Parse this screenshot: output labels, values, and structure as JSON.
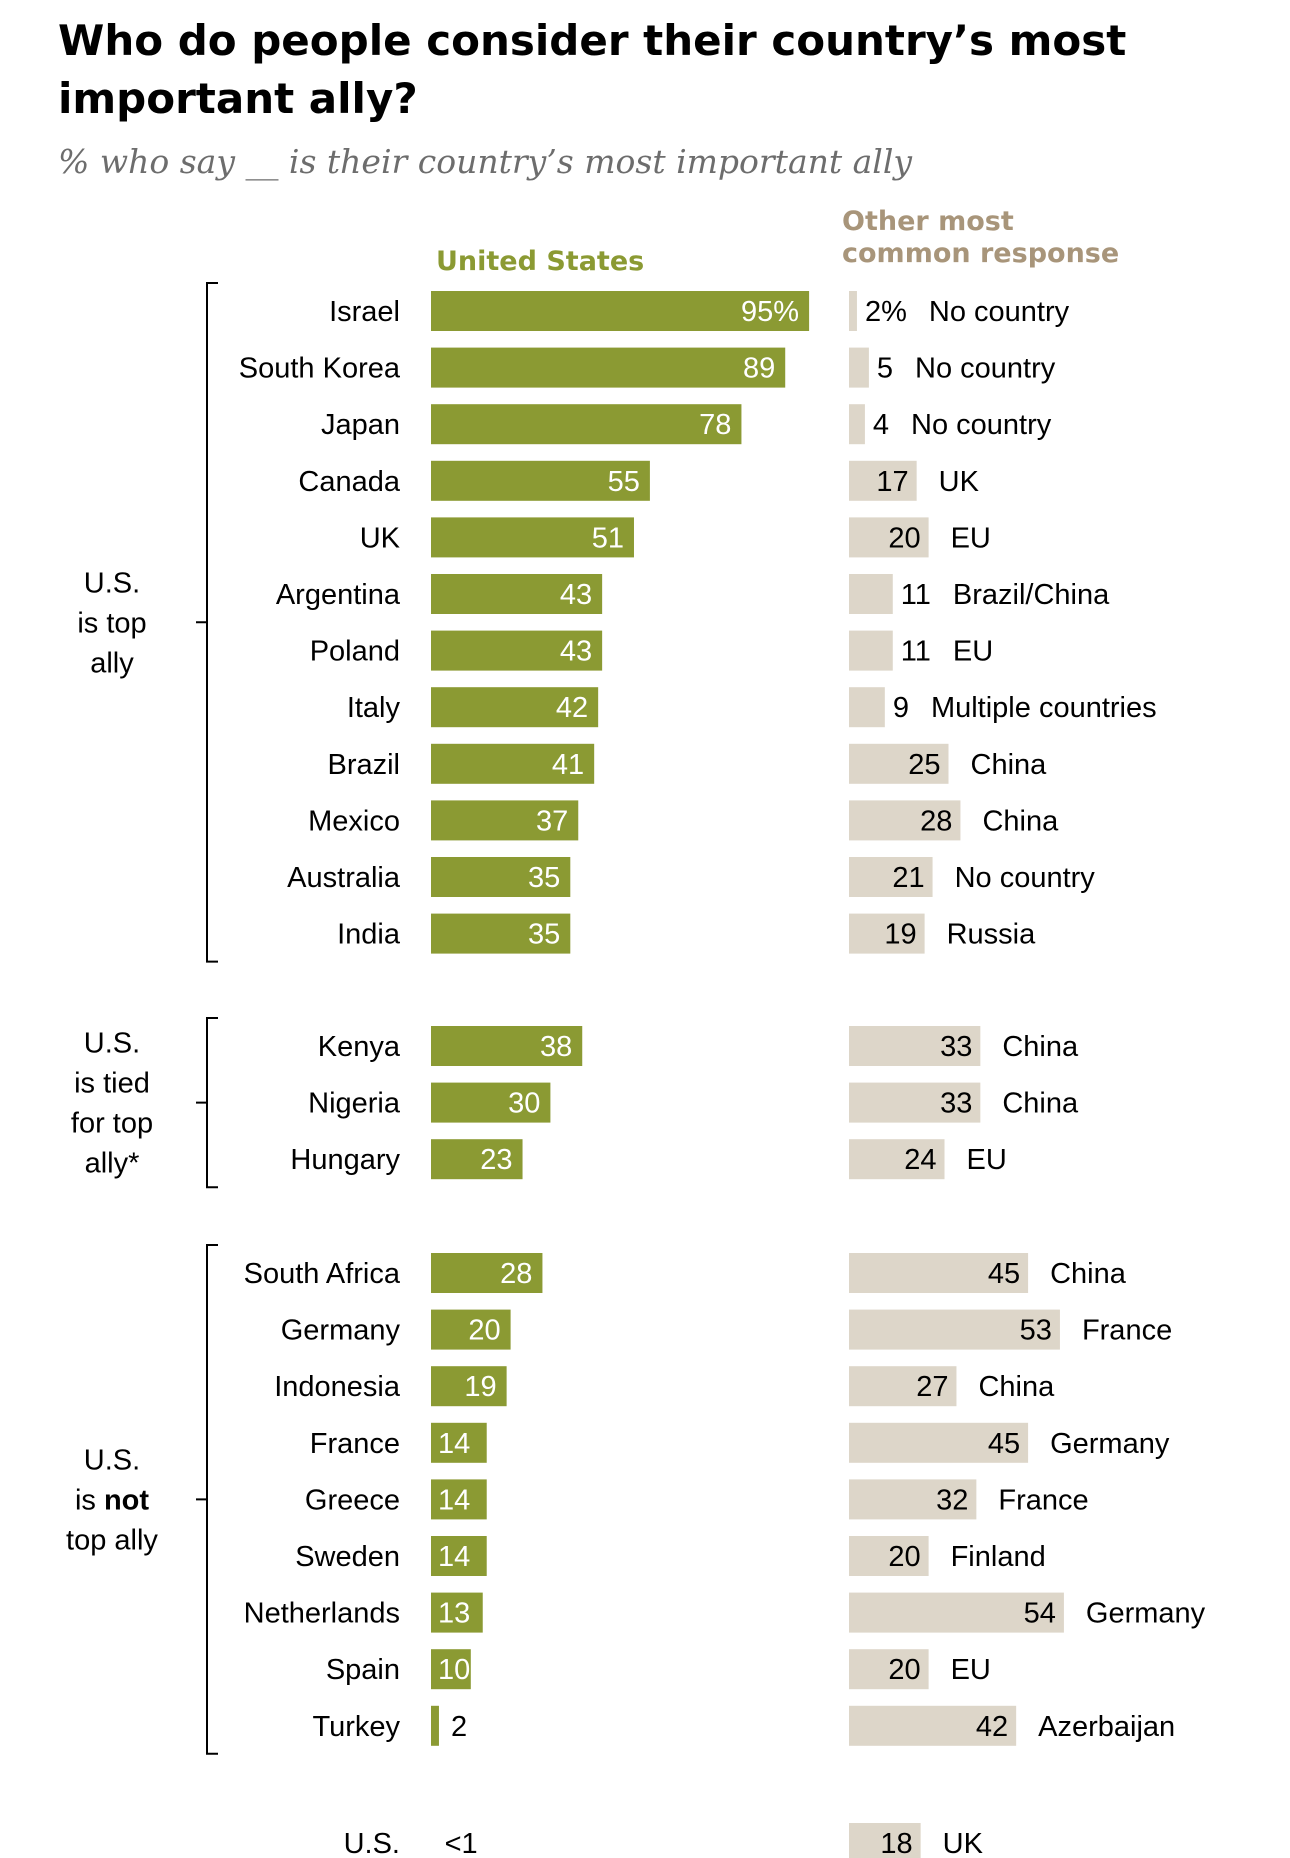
{
  "title": "Who do people consider their country’s most important ally?",
  "subtitle": "% who say __ is their country’s most important ally",
  "colors": {
    "us_bar": "#8b9a33",
    "other_bar": "#ddd6c9",
    "us_head": "#8b9a33",
    "other_head": "#a8957a"
  },
  "chart_data": {
    "type": "bar",
    "title": "Who do people consider their country’s most important ally?",
    "subtitle": "% who say __ is their country’s most important ally",
    "series": [
      {
        "name": "United States",
        "values": [
          95,
          89,
          78,
          55,
          51,
          43,
          43,
          42,
          41,
          37,
          35,
          35,
          38,
          30,
          23,
          28,
          20,
          19,
          14,
          14,
          14,
          13,
          10,
          2,
          "<1"
        ]
      },
      {
        "name": "Other most common response",
        "values": [
          2,
          5,
          4,
          17,
          20,
          11,
          11,
          9,
          25,
          28,
          21,
          19,
          33,
          33,
          24,
          45,
          53,
          27,
          45,
          32,
          20,
          54,
          20,
          42,
          18
        ]
      }
    ],
    "groups": [
      {
        "label": [
          "U.S.",
          "is top",
          "ally"
        ],
        "rows": [
          {
            "country": "Israel",
            "us": 95,
            "us_label": "95%",
            "other": 2,
            "other_label": "2%",
            "other_response": "No country"
          },
          {
            "country": "South Korea",
            "us": 89,
            "us_label": "89",
            "other": 5,
            "other_label": "5",
            "other_response": "No country"
          },
          {
            "country": "Japan",
            "us": 78,
            "us_label": "78",
            "other": 4,
            "other_label": "4",
            "other_response": "No country"
          },
          {
            "country": "Canada",
            "us": 55,
            "us_label": "55",
            "other": 17,
            "other_label": "17",
            "other_response": "UK"
          },
          {
            "country": "UK",
            "us": 51,
            "us_label": "51",
            "other": 20,
            "other_label": "20",
            "other_response": "EU"
          },
          {
            "country": "Argentina",
            "us": 43,
            "us_label": "43",
            "other": 11,
            "other_label": "11",
            "other_response": "Brazil/China"
          },
          {
            "country": "Poland",
            "us": 43,
            "us_label": "43",
            "other": 11,
            "other_label": "11",
            "other_response": "EU"
          },
          {
            "country": "Italy",
            "us": 42,
            "us_label": "42",
            "other": 9,
            "other_label": "9",
            "other_response": "Multiple countries"
          },
          {
            "country": "Brazil",
            "us": 41,
            "us_label": "41",
            "other": 25,
            "other_label": "25",
            "other_response": "China"
          },
          {
            "country": "Mexico",
            "us": 37,
            "us_label": "37",
            "other": 28,
            "other_label": "28",
            "other_response": "China"
          },
          {
            "country": "Australia",
            "us": 35,
            "us_label": "35",
            "other": 21,
            "other_label": "21",
            "other_response": "No country"
          },
          {
            "country": "India",
            "us": 35,
            "us_label": "35",
            "other": 19,
            "other_label": "19",
            "other_response": "Russia"
          }
        ]
      },
      {
        "label": [
          "U.S.",
          "is tied",
          "for top",
          "ally*"
        ],
        "rows": [
          {
            "country": "Kenya",
            "us": 38,
            "us_label": "38",
            "other": 33,
            "other_label": "33",
            "other_response": "China"
          },
          {
            "country": "Nigeria",
            "us": 30,
            "us_label": "30",
            "other": 33,
            "other_label": "33",
            "other_response": "China"
          },
          {
            "country": "Hungary",
            "us": 23,
            "us_label": "23",
            "other": 24,
            "other_label": "24",
            "other_response": "EU"
          }
        ]
      },
      {
        "label": [
          "U.S.",
          "is |not|",
          "top ally"
        ],
        "rows": [
          {
            "country": "South Africa",
            "us": 28,
            "us_label": "28",
            "other": 45,
            "other_label": "45",
            "other_response": "China"
          },
          {
            "country": "Germany",
            "us": 20,
            "us_label": "20",
            "other": 53,
            "other_label": "53",
            "other_response": "France"
          },
          {
            "country": "Indonesia",
            "us": 19,
            "us_label": "19",
            "other": 27,
            "other_label": "27",
            "other_response": "China"
          },
          {
            "country": "France",
            "us": 14,
            "us_label": "14",
            "other": 45,
            "other_label": "45",
            "other_response": "Germany"
          },
          {
            "country": "Greece",
            "us": 14,
            "us_label": "14",
            "other": 32,
            "other_label": "32",
            "other_response": "France"
          },
          {
            "country": "Sweden",
            "us": 14,
            "us_label": "14",
            "other": 20,
            "other_label": "20",
            "other_response": "Finland"
          },
          {
            "country": "Netherlands",
            "us": 13,
            "us_label": "13",
            "other": 54,
            "other_label": "54",
            "other_response": "Germany"
          },
          {
            "country": "Spain",
            "us": 10,
            "us_label": "10",
            "other": 20,
            "other_label": "20",
            "other_response": "EU"
          },
          {
            "country": "Turkey",
            "us": 2,
            "us_label": "2",
            "other": 42,
            "other_label": "42",
            "other_response": "Azerbaijan"
          }
        ]
      },
      {
        "label": [],
        "rows": [
          {
            "country": "U.S.",
            "us": 0.4,
            "us_label": "<1",
            "other": 18,
            "other_label": "18",
            "other_response": "UK"
          }
        ]
      }
    ],
    "us_header": "United States",
    "other_header": [
      "Other most",
      "common response"
    ],
    "xlim": [
      0,
      100
    ],
    "legend": "none",
    "grid": false
  }
}
